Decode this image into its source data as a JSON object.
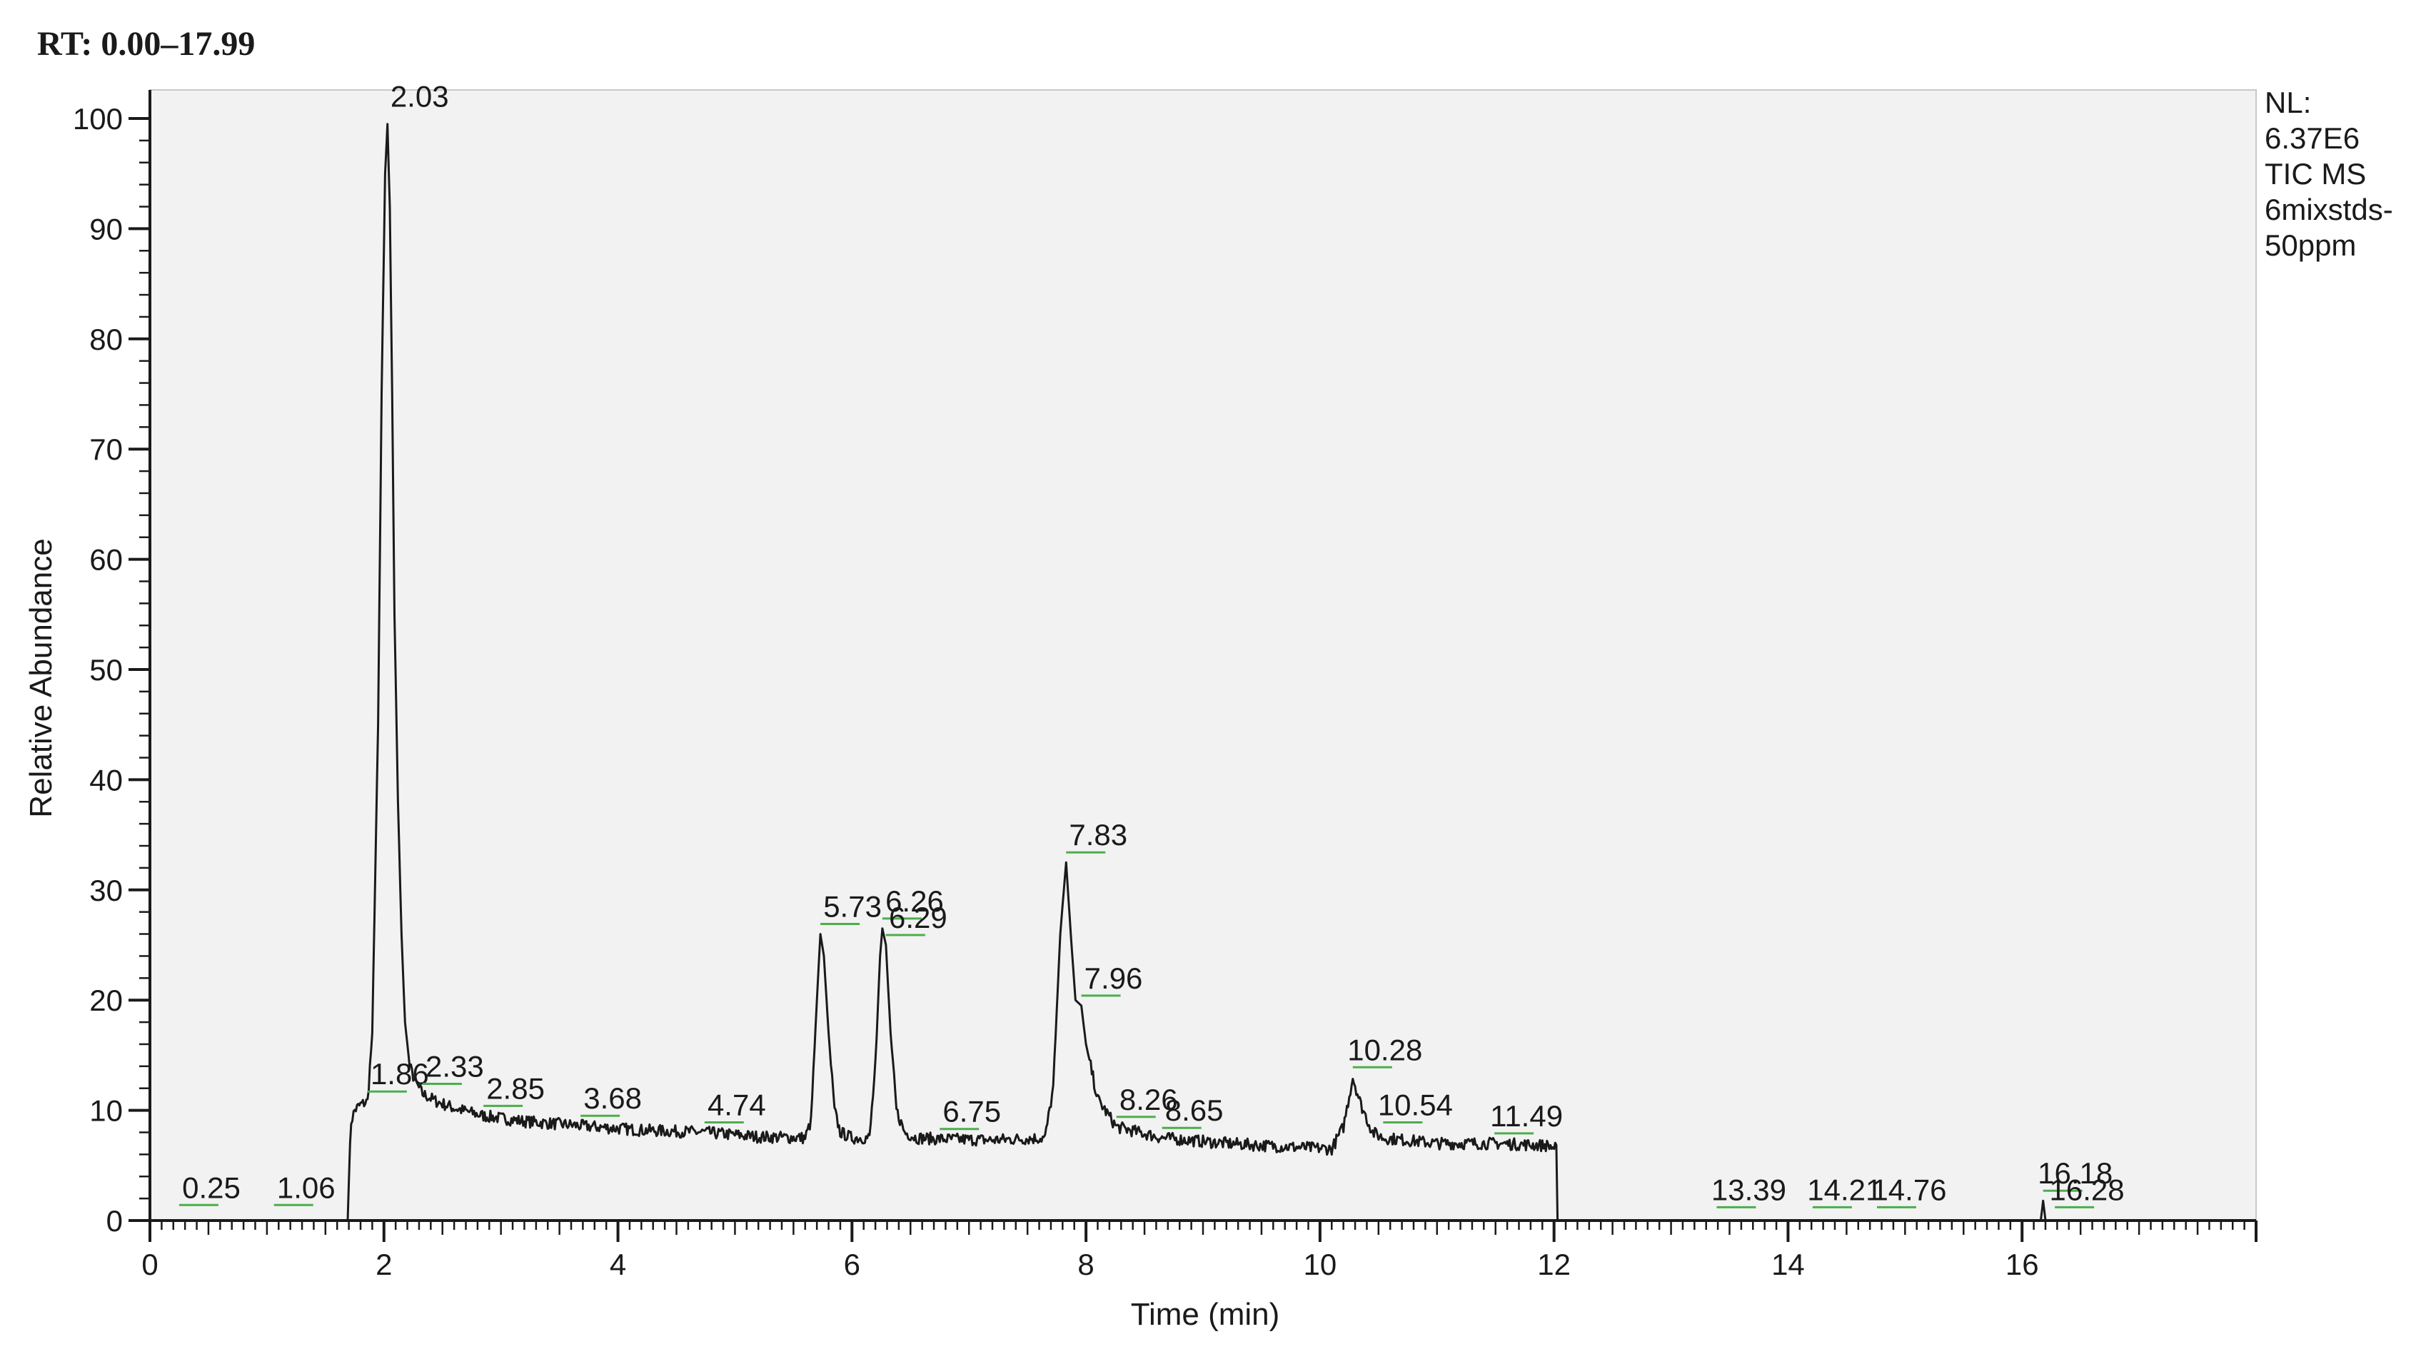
{
  "chart_data": {
    "type": "line",
    "title": "RT: 0.00–17.99",
    "xlabel": "Time (min)",
    "ylabel": "Relative Abundance",
    "xlim": [
      0,
      18
    ],
    "ylim": [
      0,
      100
    ],
    "x_ticks": [
      "0",
      "2",
      "4",
      "6",
      "8",
      "10",
      "12",
      "14",
      "16"
    ],
    "y_ticks": [
      "0",
      "10",
      "20",
      "30",
      "40",
      "50",
      "60",
      "70",
      "80",
      "90",
      "100"
    ],
    "grid": false,
    "info_lines": [
      "NL:",
      "6.37E6",
      "TIC  MS",
      "6mixstds-",
      "50ppm"
    ],
    "series": [
      {
        "x": [
          0.0,
          1.0,
          1.69,
          1.7,
          1.72,
          1.75,
          1.8,
          1.86,
          1.9,
          1.95,
          1.98,
          2.01,
          2.03,
          2.05,
          2.07,
          2.09,
          2.12,
          2.15,
          2.18,
          2.22,
          2.27,
          2.33,
          2.45,
          2.6,
          2.85,
          3.2,
          3.68,
          4.2,
          4.74,
          5.2,
          5.6,
          5.65,
          5.7,
          5.73,
          5.76,
          5.8,
          5.85,
          5.9,
          6.0,
          6.15,
          6.2,
          6.24,
          6.26,
          6.29,
          6.33,
          6.38,
          6.45,
          6.55,
          6.75,
          7.2,
          7.65,
          7.72,
          7.78,
          7.83,
          7.87,
          7.91,
          7.96,
          8.0,
          8.1,
          8.26,
          8.65,
          9.2,
          9.7,
          10.1,
          10.2,
          10.28,
          10.35,
          10.45,
          10.54,
          11.0,
          11.49,
          11.95,
          12.02,
          12.03,
          12.05,
          13.39,
          14.21,
          14.76,
          16.16,
          16.18,
          16.2,
          16.28,
          17.99
        ],
        "y": [
          0,
          0,
          0,
          4,
          9,
          10,
          10.5,
          10.8,
          17,
          45,
          75,
          95,
          99.5,
          92,
          75,
          55,
          38,
          26,
          18,
          14,
          12.5,
          11.5,
          10.8,
          10.2,
          9.5,
          9,
          8.6,
          8.2,
          8,
          7.6,
          7.5,
          9,
          20,
          26,
          24,
          17,
          10,
          8,
          7.5,
          7.5,
          14,
          24,
          26.5,
          25,
          17,
          10,
          8,
          7.5,
          7.4,
          7.3,
          7.5,
          12,
          26,
          32.5,
          26,
          20,
          19.5,
          16,
          11,
          8.5,
          7.5,
          7,
          6.7,
          6.5,
          8.5,
          13,
          10.5,
          8,
          7.5,
          7,
          7,
          6.8,
          6.5,
          0,
          0,
          0,
          0,
          0,
          0,
          1.8,
          0,
          0,
          0
        ]
      }
    ],
    "peak_labels": [
      {
        "text": "0.25",
        "x": 0.25,
        "y": 0.5
      },
      {
        "text": "1.06",
        "x": 1.06,
        "y": 0.5
      },
      {
        "text": "1.86",
        "x": 1.86,
        "y": 10.8
      },
      {
        "text": "2.03",
        "x": 2.03,
        "y": 99.5
      },
      {
        "text": "2.33",
        "x": 2.33,
        "y": 11.5
      },
      {
        "text": "2.85",
        "x": 2.85,
        "y": 9.5
      },
      {
        "text": "3.68",
        "x": 3.68,
        "y": 8.6
      },
      {
        "text": "4.74",
        "x": 4.74,
        "y": 8.0
      },
      {
        "text": "5.73",
        "x": 5.73,
        "y": 26
      },
      {
        "text": "6.26",
        "x": 6.26,
        "y": 26.5
      },
      {
        "text": "6.29",
        "x": 6.29,
        "y": 25
      },
      {
        "text": "6.75",
        "x": 6.75,
        "y": 7.4
      },
      {
        "text": "7.83",
        "x": 7.83,
        "y": 32.5
      },
      {
        "text": "7.96",
        "x": 7.96,
        "y": 19.5
      },
      {
        "text": "8.26",
        "x": 8.26,
        "y": 8.5
      },
      {
        "text": "8.65",
        "x": 8.65,
        "y": 7.5
      },
      {
        "text": "10.28",
        "x": 10.28,
        "y": 13
      },
      {
        "text": "10.54",
        "x": 10.54,
        "y": 8
      },
      {
        "text": "11.49",
        "x": 11.49,
        "y": 7
      },
      {
        "text": "13.39",
        "x": 13.39,
        "y": 0.3
      },
      {
        "text": "14.21",
        "x": 14.21,
        "y": 0.3
      },
      {
        "text": "14.76",
        "x": 14.76,
        "y": 0.3
      },
      {
        "text": "16.18",
        "x": 16.18,
        "y": 1.8
      },
      {
        "text": "16.28",
        "x": 16.28,
        "y": 0.3
      }
    ],
    "colors": {
      "line": "#1a1a1a",
      "axis": "#1a1a1a",
      "plot_bg": "#f2f2f2",
      "leader": "#4cae4c"
    }
  }
}
